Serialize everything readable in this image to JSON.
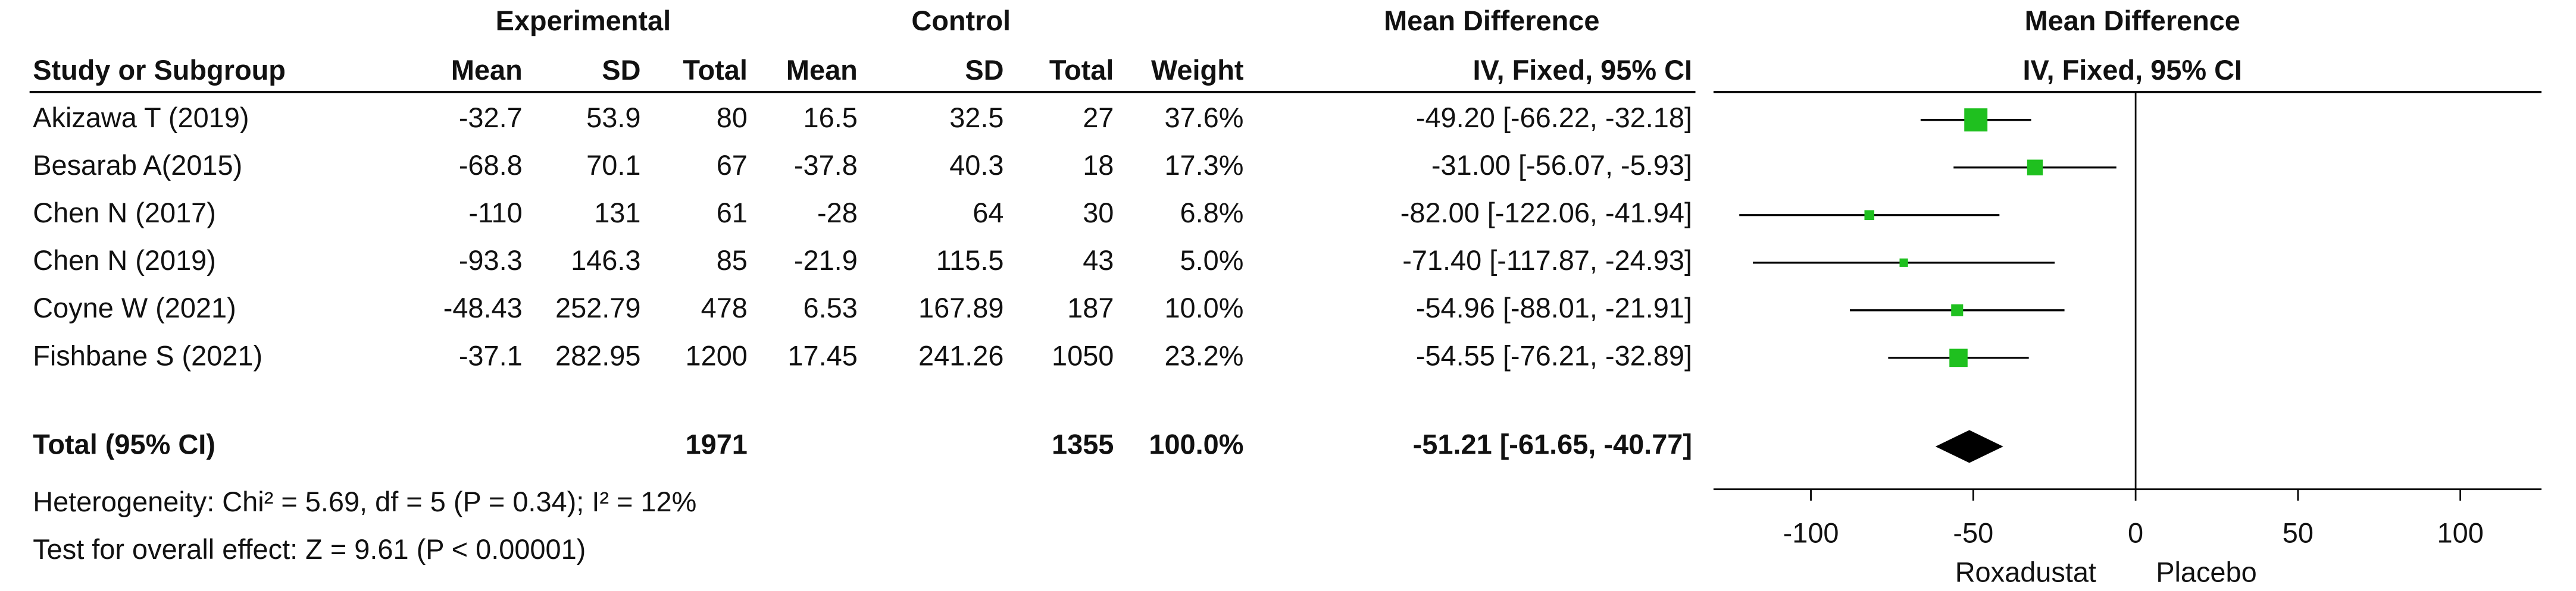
{
  "chart_data": {
    "type": "forest",
    "headers": {
      "experimental": "Experimental",
      "control": "Control",
      "effect": "Mean Difference",
      "effect_sub": "IV, Fixed, 95% CI",
      "plot": "Mean Difference",
      "plot_sub": "IV, Fixed, 95% CI",
      "columns": [
        "Study or Subgroup",
        "Mean",
        "SD",
        "Total",
        "Mean",
        "SD",
        "Total",
        "Weight"
      ]
    },
    "studies": [
      {
        "name": "Akizawa T (2019)",
        "exp_mean": -32.7,
        "exp_sd": 53.9,
        "exp_total": 80,
        "ctl_mean": 16.5,
        "ctl_sd": 32.5,
        "ctl_total": 27,
        "weight": 37.6,
        "weight_label": "37.6%",
        "md": -49.2,
        "lower": -66.22,
        "upper": -32.18,
        "ci_label": "-49.20 [-66.22, -32.18]"
      },
      {
        "name": "Besarab A(2015)",
        "exp_mean": -68.8,
        "exp_sd": 70.1,
        "exp_total": 67,
        "ctl_mean": -37.8,
        "ctl_sd": 40.3,
        "ctl_total": 18,
        "weight": 17.3,
        "weight_label": "17.3%",
        "md": -31,
        "lower": -56.07,
        "upper": -5.93,
        "ci_label": "-31.00 [-56.07, -5.93]"
      },
      {
        "name": "Chen N (2017)",
        "exp_mean": -110,
        "exp_sd": 131,
        "exp_total": 61,
        "ctl_mean": -28,
        "ctl_sd": 64,
        "ctl_total": 30,
        "weight": 6.8,
        "weight_label": "6.8%",
        "md": -82,
        "lower": -122.06,
        "upper": -41.94,
        "ci_label": "-82.00 [-122.06, -41.94]"
      },
      {
        "name": "Chen N (2019)",
        "exp_mean": -93.3,
        "exp_sd": 146.3,
        "exp_total": 85,
        "ctl_mean": -21.9,
        "ctl_sd": 115.5,
        "ctl_total": 43,
        "weight": 5,
        "weight_label": "5.0%",
        "md": -71.4,
        "lower": -117.87,
        "upper": -24.93,
        "ci_label": "-71.40 [-117.87, -24.93]"
      },
      {
        "name": "Coyne W (2021)",
        "exp_mean": -48.43,
        "exp_sd": 252.79,
        "exp_total": 478,
        "ctl_mean": 6.53,
        "ctl_sd": 167.89,
        "ctl_total": 187,
        "weight": 10,
        "weight_label": "10.0%",
        "md": -54.96,
        "lower": -88.01,
        "upper": -21.91,
        "ci_label": "-54.96 [-88.01, -21.91]"
      },
      {
        "name": "Fishbane S (2021)",
        "exp_mean": -37.1,
        "exp_sd": 282.95,
        "exp_total": 1200,
        "ctl_mean": 17.45,
        "ctl_sd": 241.26,
        "ctl_total": 1050,
        "weight": 23.2,
        "weight_label": "23.2%",
        "md": -54.55,
        "lower": -76.21,
        "upper": -32.89,
        "ci_label": "-54.55 [-76.21, -32.89]"
      }
    ],
    "total": {
      "name": "Total (95% CI)",
      "exp_total": 1971,
      "ctl_total": 1355,
      "weight_label": "100.0%",
      "md": -51.21,
      "lower": -61.65,
      "upper": -40.77,
      "ci_label": "-51.21 [-61.65, -40.77]"
    },
    "heterogeneity": "Heterogeneity: Chi² = 5.69, df = 5 (P = 0.34); I² = 12%",
    "overall_effect": "Test for overall effect: Z = 9.61 (P < 0.00001)",
    "xlim": [
      -130,
      125
    ],
    "xticks": [
      -100,
      -50,
      0,
      50,
      100
    ],
    "x_labels": [
      "Roxadustat",
      "Placebo"
    ],
    "color": "#1fc01f"
  }
}
